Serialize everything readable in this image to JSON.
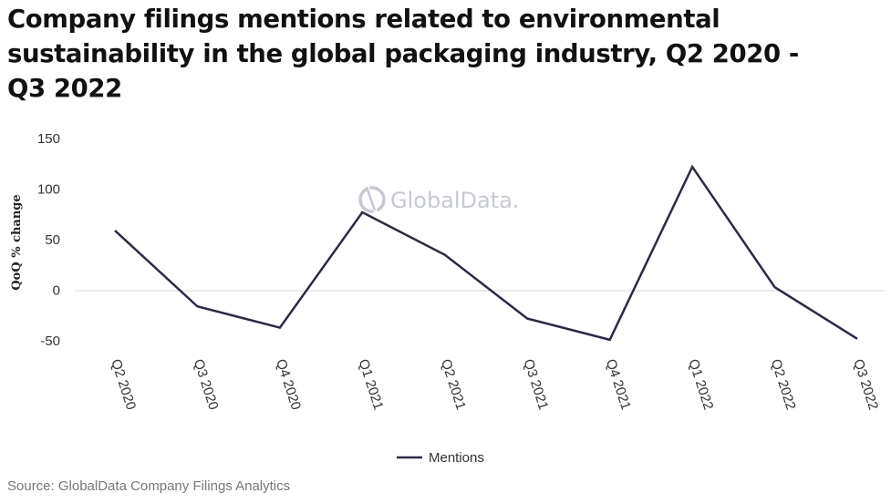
{
  "page": {
    "source": "Source: GlobalData Company Filings Analytics",
    "watermark": "GlobalData."
  },
  "colors": {
    "line": "#2b2a44",
    "zero_line": "#d9d9d9",
    "watermark": "#c6c9d2"
  },
  "chart_data": {
    "type": "line",
    "title": "Company filings mentions related to environmental sustainability in the global packaging industry, Q2 2020 -Q3 2022",
    "xlabel": "",
    "ylabel": "QoQ % change",
    "categories": [
      "Q2 2020",
      "Q3 2020",
      "Q4 2020",
      "Q1 2021",
      "Q2 2021",
      "Q3 2021",
      "Q4 2021",
      "Q1 2022",
      "Q2 2022",
      "Q3 2022"
    ],
    "series": [
      {
        "name": "Mentions",
        "values": [
          59,
          -16,
          -37,
          77,
          35,
          -28,
          -49,
          122,
          3,
          -48
        ]
      }
    ],
    "ylim": [
      -50,
      150
    ],
    "yticks": [
      "150",
      "100",
      "50",
      "0",
      "-50"
    ],
    "legend": "bottom-center",
    "grid": false
  }
}
